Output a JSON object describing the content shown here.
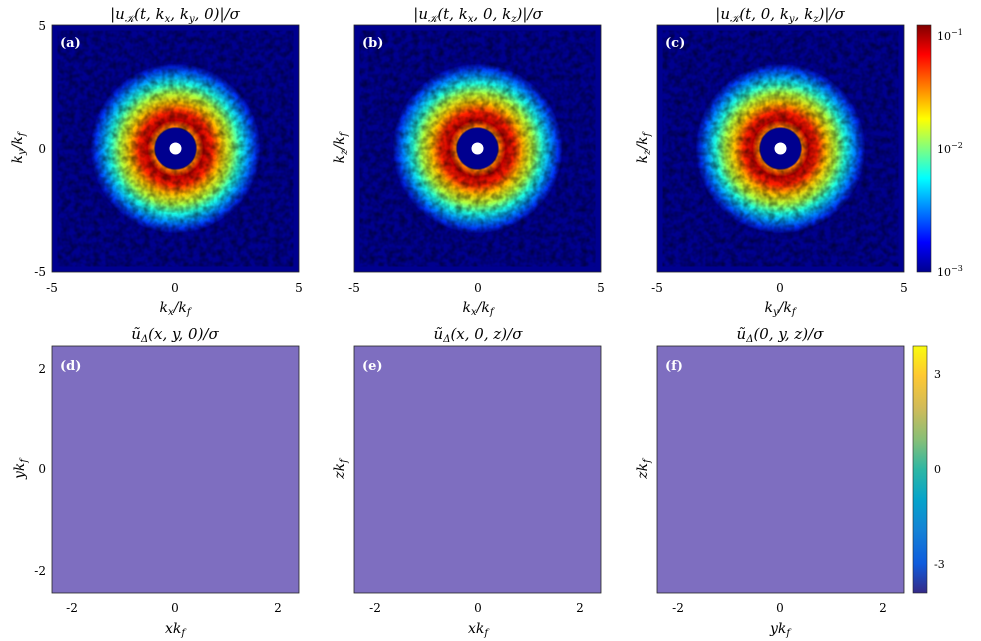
{
  "chart_data": [
    {
      "type": "heatmap",
      "panel": "(a)",
      "title": "|u_K(t, k_x, k_y, 0)|/σ",
      "xlabel": "k_x/k_f",
      "ylabel": "k_y/k_f",
      "xlim": [
        -5,
        5
      ],
      "ylim": [
        -5,
        5
      ],
      "xticks": [
        "-5",
        "0",
        "5"
      ],
      "yticks": [
        "5",
        "0",
        "-5"
      ],
      "pattern": "radial spectrum, ring peak near k≈1, masked disk at center"
    },
    {
      "type": "heatmap",
      "panel": "(b)",
      "title": "|u_K(t, k_x, 0, k_z)|/σ",
      "xlabel": "k_x/k_f",
      "ylabel": "k_z/k_f",
      "xlim": [
        -5,
        5
      ],
      "ylim": [
        -5,
        5
      ],
      "xticks": [
        "-5",
        "0",
        "5"
      ],
      "yticks": [
        "0"
      ]
    },
    {
      "type": "heatmap",
      "panel": "(c)",
      "title": "|u_K(t, 0, k_y, k_z)|/σ",
      "xlabel": "k_y/k_f",
      "ylabel": "k_z/k_f",
      "xlim": [
        -5,
        5
      ],
      "ylim": [
        -5,
        5
      ],
      "xticks": [
        "-5",
        "0",
        "5"
      ],
      "yticks": [
        "0"
      ],
      "colorbar": {
        "scale": "log",
        "range": [
          0.001,
          0.1
        ],
        "ticks": [
          "10^-1",
          "10^-2",
          "10^-3"
        ],
        "colormap": "jet"
      }
    },
    {
      "type": "heatmap",
      "panel": "(d)",
      "title": "ũ_Δ(x, y, 0)/σ",
      "xlabel": "xk_f",
      "ylabel": "yk_f",
      "xlim": [
        -2.4,
        2.4
      ],
      "ylim": [
        -2.4,
        2.4
      ],
      "xticks": [
        "-2",
        "0",
        "2"
      ],
      "yticks": [
        "2",
        "0",
        "-2"
      ]
    },
    {
      "type": "heatmap",
      "panel": "(e)",
      "title": "ũ_Δ(x, 0, z)/σ",
      "xlabel": "xk_f",
      "ylabel": "zk_f",
      "xlim": [
        -2.4,
        2.4
      ],
      "ylim": [
        -2.4,
        2.4
      ],
      "xticks": [
        "-2",
        "0",
        "2"
      ],
      "yticks": [
        "0"
      ]
    },
    {
      "type": "heatmap",
      "panel": "(f)",
      "title": "ũ_Δ(0, y, z)/σ",
      "xlabel": "yk_f",
      "ylabel": "zk_f",
      "xlim": [
        -2.4,
        2.4
      ],
      "ylim": [
        -2.4,
        2.4
      ],
      "xticks": [
        "-2",
        "0",
        "2"
      ],
      "yticks": [
        "0"
      ],
      "colorbar": {
        "scale": "linear",
        "range": [
          -4,
          4
        ],
        "ticks": [
          "3",
          "0",
          "-3"
        ],
        "colormap": "parula"
      }
    }
  ],
  "colors": {
    "jet": [
      "#00008f",
      "#0000ff",
      "#00ffff",
      "#ffff00",
      "#ff0000",
      "#800000"
    ],
    "parula": [
      "#352a87",
      "#0f5cdd",
      "#1481d6",
      "#06a4ca",
      "#2eb7a4",
      "#87bf77",
      "#d1bb59",
      "#fec832",
      "#f9fb0e"
    ]
  }
}
